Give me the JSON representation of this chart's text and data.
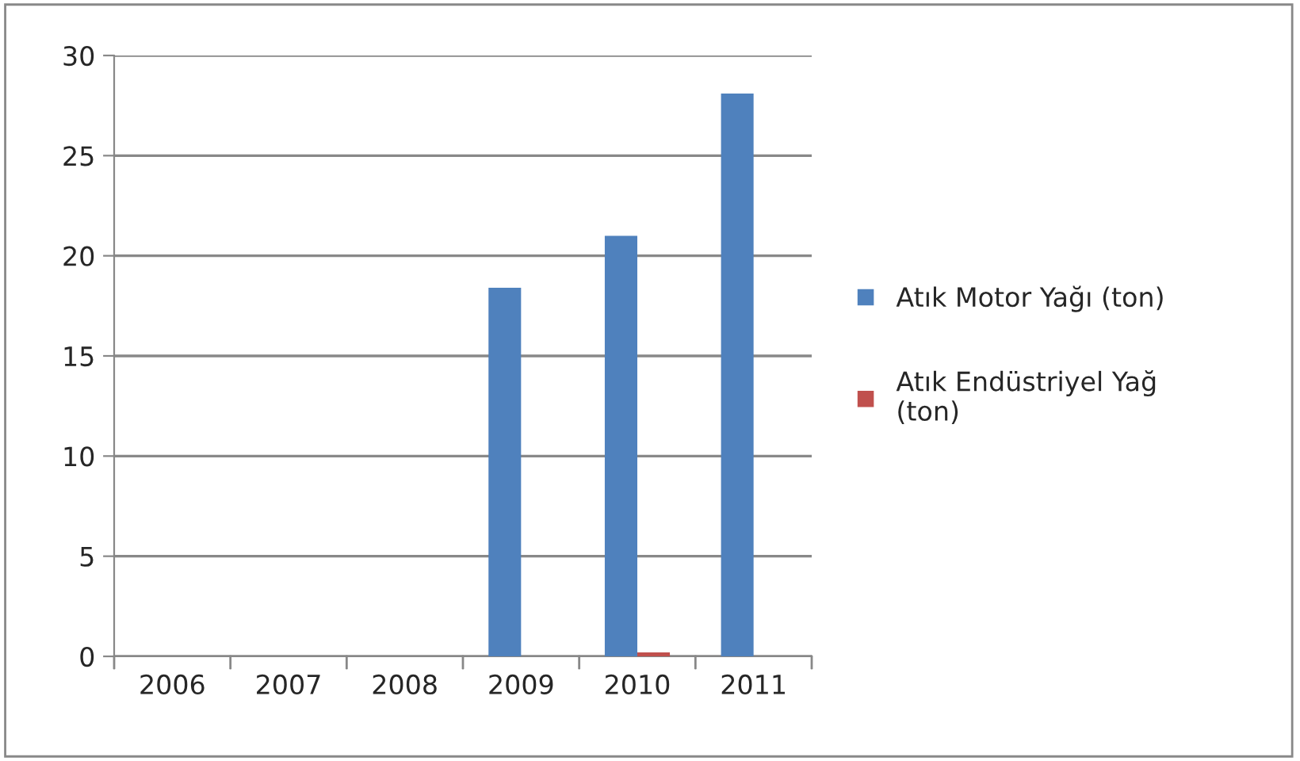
{
  "chart_data": {
    "type": "bar",
    "categories": [
      "2006",
      "2007",
      "2008",
      "2009",
      "2010",
      "2011"
    ],
    "series": [
      {
        "name": "Atık Motor Yağı (ton)",
        "color": "#4f81bd",
        "values": [
          null,
          null,
          null,
          18.4,
          21.0,
          28.1
        ]
      },
      {
        "name": "Atık Endüstriyel Yağ (ton)",
        "color": "#c0504d",
        "values": [
          null,
          null,
          null,
          null,
          0.2,
          null
        ]
      }
    ],
    "ylim": [
      0,
      30
    ],
    "yticks": [
      0,
      5,
      10,
      15,
      20,
      25,
      30
    ],
    "grid": "y",
    "legend": "right"
  }
}
